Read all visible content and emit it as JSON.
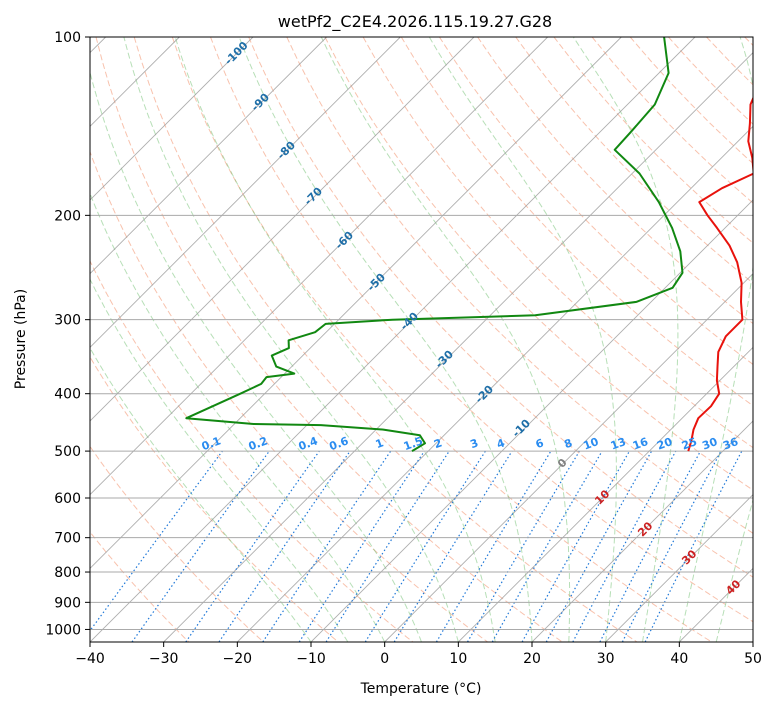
{
  "chart_data": {
    "type": "line",
    "title": "wetPf2_C2E4.2026.115.19.27.G28",
    "xlabel": "Temperature (°C)",
    "ylabel": "Pressure (hPa)",
    "xlim": [
      -40,
      50
    ],
    "ylim": [
      1050,
      100
    ],
    "y_scale": "log",
    "x_ticks": [
      -40,
      -30,
      -20,
      -10,
      0,
      10,
      20,
      30,
      40,
      50
    ],
    "y_ticks": [
      100,
      200,
      300,
      400,
      500,
      600,
      700,
      800,
      900,
      1000
    ],
    "grid": true,
    "skew": true,
    "series": [
      {
        "label": "temperature",
        "color": "#e8120c",
        "points": [
          [
            15.3,
            500
          ],
          [
            14.3,
            480
          ],
          [
            13.1,
            460
          ],
          [
            12.2,
            440
          ],
          [
            12.3,
            420
          ],
          [
            11.7,
            400
          ],
          [
            9.6,
            380
          ],
          [
            7.8,
            360
          ],
          [
            5.9,
            340
          ],
          [
            4.8,
            320
          ],
          [
            4.8,
            300
          ],
          [
            2.2,
            280
          ],
          [
            -0.3,
            260
          ],
          [
            -3.7,
            240
          ],
          [
            -7.0,
            225
          ],
          [
            -11.1,
            210
          ],
          [
            -14.1,
            200
          ],
          [
            -17.0,
            190
          ],
          [
            -15.8,
            180
          ],
          [
            -13.5,
            170
          ],
          [
            -15.8,
            160
          ],
          [
            -18.6,
            150
          ],
          [
            -20.8,
            140
          ],
          [
            -23.3,
            130
          ],
          [
            -24.9,
            120
          ],
          [
            -28.1,
            110
          ],
          [
            -30.2,
            100
          ]
        ]
      },
      {
        "label": "dewpoint",
        "color": "#118811",
        "points": [
          [
            -22.2,
            500
          ],
          [
            -21.5,
            485
          ],
          [
            -23.3,
            470
          ],
          [
            -29.0,
            460
          ],
          [
            -38.1,
            452
          ],
          [
            -47.4,
            450
          ],
          [
            -57.3,
            440
          ],
          [
            -53.3,
            400
          ],
          [
            -51.8,
            385
          ],
          [
            -52.0,
            375
          ],
          [
            -48.7,
            370
          ],
          [
            -52.1,
            360
          ],
          [
            -54.2,
            345
          ],
          [
            -52.9,
            335
          ],
          [
            -54.0,
            325
          ],
          [
            -51.5,
            315
          ],
          [
            -51.2,
            305
          ],
          [
            -42.7,
            300
          ],
          [
            -23.9,
            295
          ],
          [
            -12.0,
            280
          ],
          [
            -9.0,
            265
          ],
          [
            -9.7,
            250
          ],
          [
            -12.9,
            230
          ],
          [
            -17.2,
            210
          ],
          [
            -22.5,
            190
          ],
          [
            -29.0,
            170
          ],
          [
            -35.6,
            155
          ],
          [
            -35.8,
            145
          ],
          [
            -36.3,
            130
          ],
          [
            -38.7,
            115
          ],
          [
            -44.2,
            100
          ]
        ]
      }
    ],
    "isotherm_labels": [
      "-100",
      "-90",
      "-80",
      "-70",
      "-60",
      "-50",
      "-40",
      "-30",
      "-20",
      "-10",
      "0",
      "10",
      "20",
      "30",
      "40"
    ],
    "mixing_ratio_labels": [
      "0.1",
      "0.2",
      "0.4",
      "0.6",
      "1",
      "1.5",
      "2",
      "3",
      "4",
      "6",
      "8",
      "10",
      "13",
      "16",
      "20",
      "25",
      "30",
      "36"
    ]
  }
}
